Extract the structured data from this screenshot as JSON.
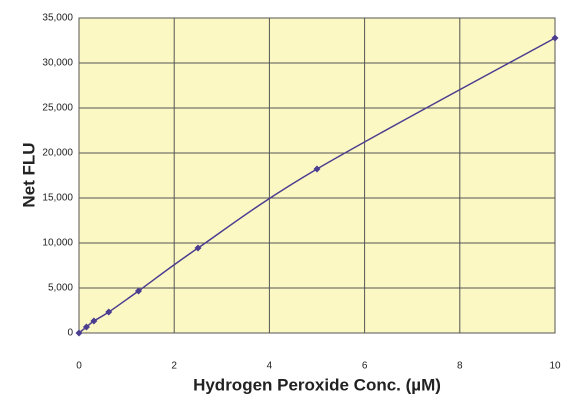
{
  "chart_data": {
    "type": "scatter",
    "x_label": "Hydrogen Peroxide Conc. (µM)",
    "y_label": "Net FLU",
    "x": [
      0,
      0.156,
      0.3125,
      0.625,
      1.25,
      2.5,
      5,
      10
    ],
    "series": [
      {
        "color": "#4b3d8f",
        "values": [
          0,
          670,
          1330,
          2330,
          4670,
          9440,
          18220,
          32780
        ]
      }
    ],
    "smooth": true,
    "xlim": [
      0,
      10
    ],
    "xticks": [
      0,
      2,
      4,
      6,
      8,
      10
    ],
    "ylim": [
      0,
      35000
    ],
    "yticks": [
      0,
      {
        "value": 5000,
        "label": "5,000"
      },
      {
        "value": 10000,
        "label": "10,000"
      },
      {
        "value": 15000,
        "label": "15,000"
      },
      {
        "value": 20000,
        "label": "20,000"
      },
      {
        "value": 25000,
        "label": "25,000"
      },
      {
        "value": 30000,
        "label": "30,000"
      },
      {
        "value": 35000,
        "label": "35,000"
      }
    ],
    "grid": true,
    "background": "#fbf8c4"
  }
}
